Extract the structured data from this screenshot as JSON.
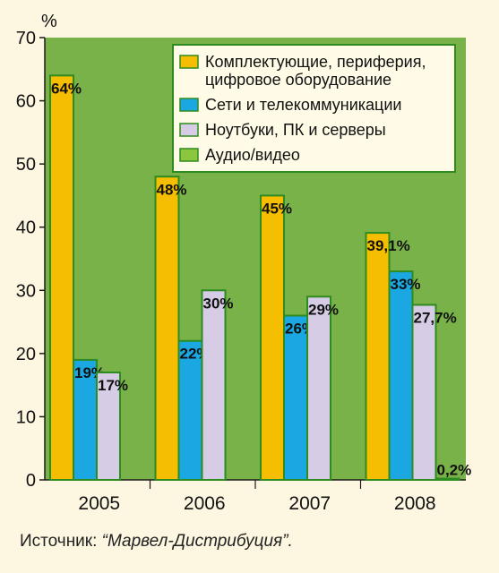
{
  "chart_data": {
    "type": "bar",
    "ylabel": "%",
    "ylim": [
      0,
      70
    ],
    "yticks": [
      "0",
      "10",
      "20",
      "30",
      "40",
      "50",
      "60",
      "70"
    ],
    "categories": [
      "2005",
      "2006",
      "2007",
      "2008"
    ],
    "series": [
      {
        "name": "Комплектующие, периферия, цифровое оборудование",
        "name_lines": [
          "Комплектующие, периферия,",
          "цифровое оборудование"
        ],
        "color": "#f5be00",
        "values": [
          64,
          48,
          45,
          39.1
        ],
        "labels": [
          "64%",
          "48%",
          "45%",
          "39,1%"
        ]
      },
      {
        "name": "Сети и телекоммуникации",
        "name_lines": [
          "Сети и телекоммуникации"
        ],
        "color": "#1aa7e2",
        "values": [
          19,
          22,
          26,
          33
        ],
        "labels": [
          "19%",
          "22%",
          "26%",
          "33%"
        ]
      },
      {
        "name": "Ноутбуки, ПК и серверы",
        "name_lines": [
          "Ноутбуки, ПК и серверы"
        ],
        "color": "#d7cce6",
        "values": [
          17,
          30,
          29,
          27.7
        ],
        "labels": [
          "17%",
          "30%",
          "29%",
          "27,7%"
        ]
      },
      {
        "name": "Аудио/видео",
        "name_lines": [
          "Аудио/видео"
        ],
        "color": "#8cc63f",
        "values": [
          null,
          null,
          null,
          0.2
        ],
        "labels": [
          "",
          "",
          "",
          "0,2%"
        ]
      }
    ],
    "grid": false,
    "legend_position": "top-right"
  },
  "colors": {
    "plot_background": "#7ab24a",
    "bar_border": "#2e8b1f",
    "axis": "#1a1a1a",
    "page_background": "#fdf6e0"
  },
  "source": {
    "prefix": "Источник: ",
    "name": "“Марвел-Дистрибуция”."
  }
}
